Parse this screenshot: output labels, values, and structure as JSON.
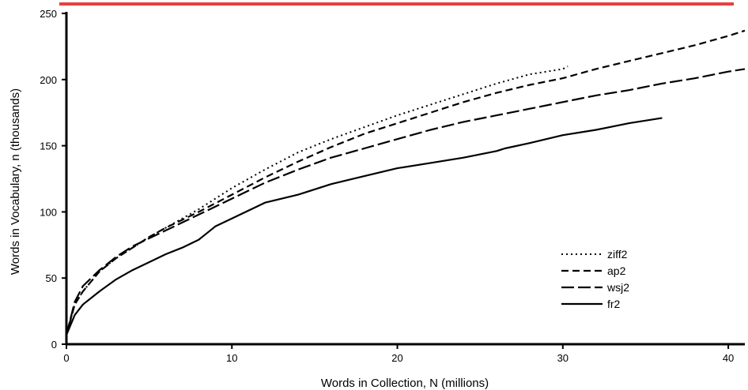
{
  "colors": {
    "accent_rule": "#e8403f",
    "ink": "#000000",
    "background": "#ffffff"
  },
  "chart_data": {
    "type": "line",
    "title": "",
    "xlabel": "Words in Collection, N (millions)",
    "ylabel": "Words in Vocabulary, n (thousands)",
    "xlim": [
      0,
      41
    ],
    "ylim": [
      0,
      250
    ],
    "xticks": [
      0,
      10,
      20,
      30,
      40
    ],
    "yticks": [
      0,
      50,
      100,
      150,
      200,
      250
    ],
    "grid": false,
    "legend_position": "bottom-right",
    "series": [
      {
        "name": "ziff2",
        "style": "dotted",
        "x": [
          0,
          0.5,
          1,
          2,
          3,
          4,
          5,
          6,
          8,
          10,
          12,
          14,
          16,
          18,
          20,
          22,
          24,
          26,
          28,
          30,
          30.3
        ],
        "y": [
          7,
          30,
          40,
          55,
          65,
          73,
          81,
          88,
          102,
          118,
          132,
          145,
          155,
          164,
          173,
          181,
          189,
          197,
          204,
          208,
          210
        ]
      },
      {
        "name": "ap2",
        "style": "dashed",
        "x": [
          0,
          0.5,
          1,
          2,
          3,
          4,
          5,
          6,
          8,
          10,
          12,
          14,
          16,
          18,
          20,
          22,
          24,
          26,
          28,
          30,
          32,
          34,
          36,
          38,
          40,
          41
        ],
        "y": [
          7,
          30,
          40,
          55,
          65,
          73,
          81,
          88,
          100,
          113,
          126,
          138,
          149,
          159,
          167,
          175,
          183,
          190,
          196,
          201,
          208,
          214,
          220,
          226,
          233,
          237
        ]
      },
      {
        "name": "wsj2",
        "style": "long-dashed",
        "x": [
          0,
          0.5,
          1,
          2,
          3,
          4,
          5,
          6,
          8,
          10,
          12,
          14,
          16,
          18,
          20,
          22,
          24,
          26,
          28,
          30,
          32,
          34,
          36,
          38,
          40,
          41
        ],
        "y": [
          7,
          32,
          44,
          56,
          66,
          74,
          80,
          86,
          98,
          110,
          122,
          132,
          141,
          148,
          155,
          162,
          168,
          173,
          178,
          183,
          188,
          192,
          197,
          201,
          206,
          208
        ]
      },
      {
        "name": "fr2",
        "style": "solid",
        "x": [
          0,
          0.5,
          1,
          2,
          3,
          4,
          5,
          6,
          7,
          8,
          8.5,
          9,
          10,
          11,
          11.5,
          12,
          14,
          16,
          18,
          20,
          22,
          24,
          26,
          26.5,
          28,
          30,
          32,
          34,
          36
        ],
        "y": [
          7,
          22,
          30,
          40,
          49,
          56,
          62,
          68,
          73,
          79,
          84,
          89,
          95,
          101,
          104,
          107,
          113,
          121,
          127,
          133,
          137,
          141,
          146,
          148,
          152,
          158,
          162,
          167,
          171
        ]
      }
    ]
  }
}
